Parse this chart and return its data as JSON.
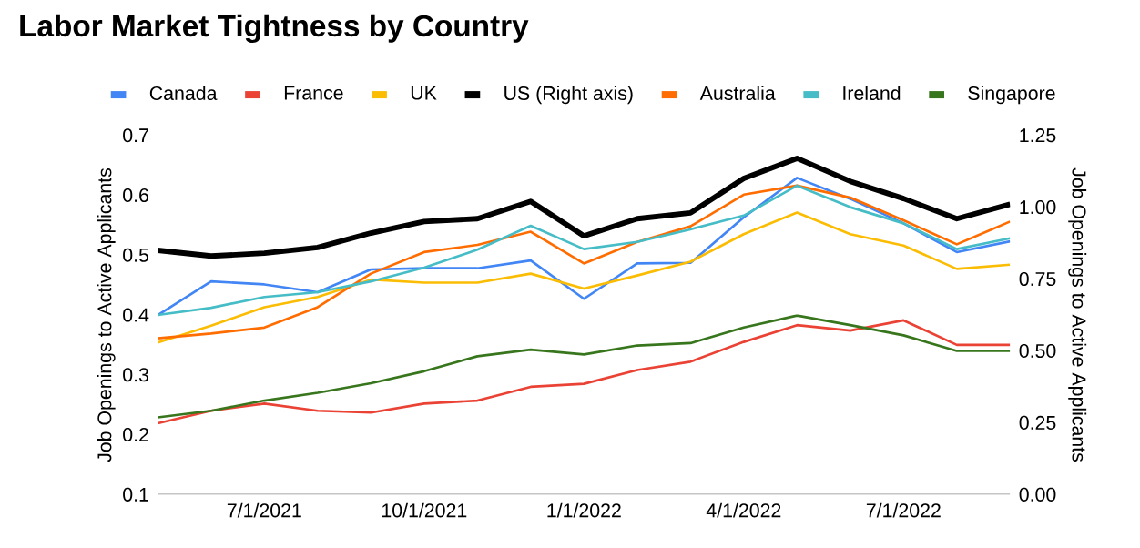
{
  "chart_data": {
    "type": "line",
    "title": "Labor Market Tightness by Country",
    "ylabel": "Job Openings to Active Applicants",
    "y2label": "Job Openings to Active Applicants",
    "x": [
      "2021-05",
      "2021-06",
      "2021-07",
      "2021-08",
      "2021-09",
      "2021-10",
      "2021-11",
      "2021-12",
      "2022-01",
      "2022-02",
      "2022-03",
      "2022-04",
      "2022-05",
      "2022-06",
      "2022-07",
      "2022-08",
      "2022-09"
    ],
    "xticks": [
      {
        "value": "2021-07",
        "label": "7/1/2021"
      },
      {
        "value": "2021-10",
        "label": "10/1/2021"
      },
      {
        "value": "2022-01",
        "label": "1/1/2022"
      },
      {
        "value": "2022-04",
        "label": "4/1/2022"
      },
      {
        "value": "2022-07",
        "label": "7/1/2022"
      }
    ],
    "xlim": [
      "2021-05",
      "2022-09"
    ],
    "ylim": [
      0.1,
      0.7
    ],
    "yticks": [
      0.1,
      0.2,
      0.3,
      0.4,
      0.5,
      0.6,
      0.7
    ],
    "y2lim": [
      0,
      1.25
    ],
    "y2ticks": [
      {
        "value": 0,
        "label": "0.00"
      },
      {
        "value": 0.25,
        "label": "0.25"
      },
      {
        "value": 0.5,
        "label": "0.50"
      },
      {
        "value": 0.75,
        "label": "0.75"
      },
      {
        "value": 1,
        "label": "1.00"
      },
      {
        "value": 1.25,
        "label": "1.25"
      }
    ],
    "legend": "top",
    "series": [
      {
        "name": "Canada",
        "color": "#4285f4",
        "values": [
          0.4,
          0.456,
          0.451,
          0.438,
          0.476,
          0.478,
          0.478,
          0.491,
          0.427,
          0.486,
          0.487,
          0.563,
          0.629,
          0.594,
          0.553,
          0.505,
          0.523
        ]
      },
      {
        "name": "France",
        "color": "#ea4335",
        "values": [
          0.219,
          0.24,
          0.252,
          0.24,
          0.237,
          0.252,
          0.257,
          0.28,
          0.285,
          0.308,
          0.322,
          0.355,
          0.383,
          0.374,
          0.391,
          0.35,
          0.35
        ]
      },
      {
        "name": "UK",
        "color": "#fbbc04",
        "values": [
          0.354,
          0.382,
          0.413,
          0.43,
          0.459,
          0.454,
          0.454,
          0.469,
          0.444,
          0.466,
          0.489,
          0.535,
          0.571,
          0.535,
          0.516,
          0.477,
          0.484
        ]
      },
      {
        "name": "US (Right axis)",
        "color": "#000000",
        "axis": "y2",
        "values": [
          0.85,
          0.83,
          0.84,
          0.86,
          0.91,
          0.95,
          0.96,
          1.02,
          0.9,
          0.96,
          0.98,
          1.1,
          1.17,
          1.09,
          1.03,
          0.96,
          1.01
        ]
      },
      {
        "name": "Australia",
        "color": "#ff6d01",
        "values": [
          0.361,
          0.369,
          0.379,
          0.413,
          0.469,
          0.505,
          0.517,
          0.539,
          0.486,
          0.522,
          0.548,
          0.601,
          0.616,
          0.596,
          0.558,
          0.518,
          0.556
        ]
      },
      {
        "name": "Ireland",
        "color": "#46bdc6",
        "values": [
          0.4,
          0.412,
          0.43,
          0.438,
          0.456,
          0.479,
          0.509,
          0.549,
          0.51,
          0.522,
          0.543,
          0.566,
          0.616,
          0.58,
          0.553,
          0.51,
          0.528
        ]
      },
      {
        "name": "Singapore",
        "color": "#38761d",
        "values": [
          0.229,
          0.24,
          0.257,
          0.27,
          0.286,
          0.306,
          0.331,
          0.342,
          0.334,
          0.349,
          0.353,
          0.379,
          0.399,
          0.383,
          0.366,
          0.34,
          0.34
        ]
      }
    ]
  }
}
